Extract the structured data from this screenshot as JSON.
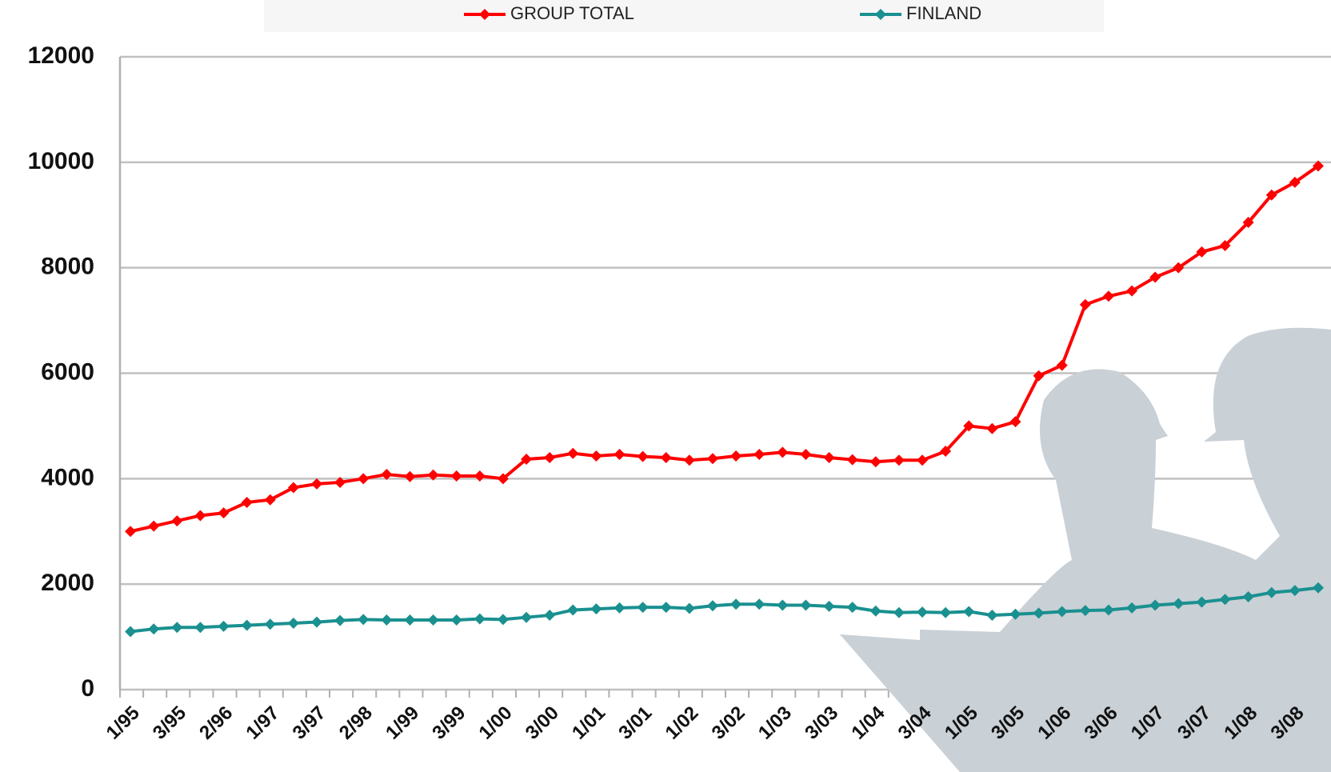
{
  "chart_data": {
    "type": "line",
    "categories": [
      "1/95",
      null,
      "3/95",
      null,
      "2/96",
      null,
      "1/97",
      null,
      "3/97",
      null,
      "2/98",
      null,
      "1/99",
      null,
      "3/99",
      null,
      "1/00",
      null,
      "3/00",
      null,
      "1/01",
      null,
      "3/01",
      null,
      "1/02",
      null,
      "3/02",
      null,
      "1/03",
      null,
      "3/03",
      null,
      "1/04",
      null,
      "3/04",
      null,
      "1/05",
      null,
      "3/05",
      null,
      "1/06",
      null,
      "3/06",
      null,
      "1/07",
      null,
      "3/07",
      null,
      "1/08",
      null,
      "3/08",
      null
    ],
    "series": [
      {
        "name": "GROUP TOTAL",
        "color": "#ff0000",
        "values": [
          3000,
          3100,
          3200,
          3300,
          3350,
          3550,
          3600,
          3830,
          3900,
          3930,
          4000,
          4080,
          4040,
          4070,
          4050,
          4050,
          4000,
          4370,
          4400,
          4480,
          4430,
          4460,
          4420,
          4400,
          4350,
          4380,
          4430,
          4460,
          4500,
          4460,
          4400,
          4360,
          4320,
          4350,
          4350,
          4520,
          5000,
          4950,
          5080,
          5950,
          6150,
          7300,
          7460,
          7560,
          7820,
          8000,
          8300,
          8420,
          8860,
          9380,
          9620,
          9930
        ]
      },
      {
        "name": "FINLAND",
        "color": "#1a9090",
        "values": [
          1100,
          1150,
          1180,
          1180,
          1200,
          1220,
          1240,
          1260,
          1280,
          1310,
          1330,
          1320,
          1320,
          1320,
          1320,
          1340,
          1330,
          1370,
          1410,
          1510,
          1530,
          1550,
          1560,
          1560,
          1540,
          1590,
          1620,
          1620,
          1600,
          1600,
          1580,
          1560,
          1490,
          1460,
          1470,
          1460,
          1480,
          1410,
          1430,
          1450,
          1480,
          1500,
          1510,
          1550,
          1600,
          1630,
          1660,
          1710,
          1760,
          1840,
          1880,
          1930
        ]
      }
    ],
    "ylim": [
      0,
      12000
    ],
    "yticks": [
      0,
      2000,
      4000,
      6000,
      8000,
      10000,
      12000
    ],
    "grid": true,
    "legend": "top"
  }
}
